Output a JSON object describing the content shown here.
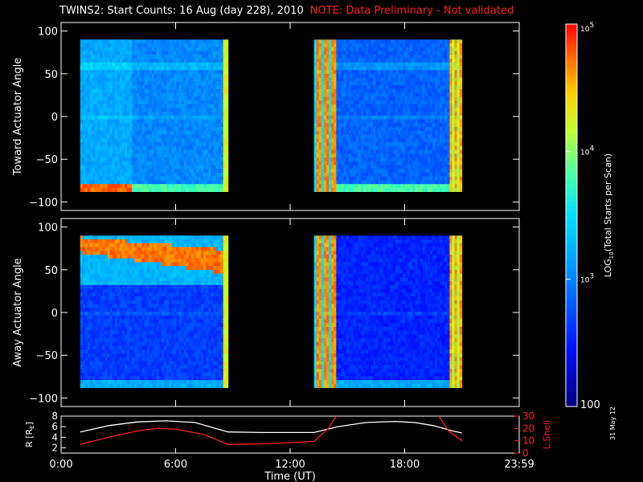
{
  "header": {
    "title": "TWINS2: Start Counts: 16 Aug (day 228), 2010",
    "note": "NOTE: Data Preliminary - Not validated"
  },
  "footer": {
    "date_stamp": "31 May 12"
  },
  "colors": {
    "note": "#ff2020",
    "orbit_r": "#ffffff",
    "orbit_l": "#ff2020"
  },
  "chart_data": [
    {
      "type": "heatmap",
      "title": "",
      "ylabel": "Toward Actuator Angle",
      "ylim": [
        -110,
        110
      ],
      "yticks": [
        100,
        50,
        0,
        -50,
        -100
      ],
      "xlim": [
        0,
        24
      ],
      "data_intervals_hours": [
        [
          1.0,
          8.75
        ],
        [
          13.25,
          21.0
        ]
      ],
      "angle_range": [
        -88,
        90
      ]
    },
    {
      "type": "heatmap",
      "title": "",
      "ylabel": "Away Actuator Angle",
      "ylim": [
        -110,
        110
      ],
      "yticks": [
        100,
        50,
        0,
        -50,
        -100
      ],
      "xlim": [
        0,
        24
      ],
      "data_intervals_hours": [
        [
          1.0,
          8.75
        ],
        [
          13.25,
          21.0
        ]
      ],
      "angle_range": [
        -88,
        90
      ]
    },
    {
      "type": "line",
      "ylabel_left": "R [R",
      "ylabel_left_sub": "E",
      "ylabel_left_close": "]",
      "ylabel_right": "L Shell",
      "ylim_left": [
        1,
        8
      ],
      "yticks_left": [
        8,
        6,
        4,
        2
      ],
      "ylim_right": [
        0,
        30
      ],
      "yticks_right": [
        30,
        20,
        10,
        0
      ],
      "xlabel": "Time (UT)",
      "xticks": [
        "0:00",
        "6:00",
        "12:00",
        "18:00",
        "23:59"
      ],
      "xtick_hours": [
        0,
        6,
        12,
        18,
        24
      ],
      "series": [
        {
          "axis": "left",
          "color": "#ffffff",
          "x": [
            1.0,
            2.5,
            4.0,
            5.5,
            7.0,
            8.75,
            10.5,
            12.0,
            13.25,
            14.5,
            16.0,
            17.5,
            18.5,
            19.5,
            20.5,
            21.0
          ],
          "y": [
            5.0,
            6.2,
            6.9,
            7.1,
            6.8,
            5.0,
            4.9,
            4.9,
            4.9,
            6.0,
            6.8,
            7.0,
            6.8,
            6.2,
            5.2,
            4.8
          ]
        },
        {
          "axis": "right",
          "color": "#ff2020",
          "x": [
            1.0,
            2.5,
            4.0,
            5.0,
            6.0,
            7.5,
            8.75,
            10.5,
            12.0,
            13.25,
            14.0,
            14.5,
            19.7,
            20.3,
            21.0
          ],
          "y": [
            7.0,
            13.0,
            18.0,
            20.0,
            19.5,
            15.0,
            7.0,
            7.5,
            8.5,
            9.5,
            20.0,
            32.0,
            32.0,
            18.0,
            10.0
          ]
        }
      ]
    }
  ],
  "colorbar": {
    "label_pre": "LOG",
    "label_sub": "10",
    "label_post": "(Total Starts per Scan)",
    "ticks": [
      {
        "base": "10",
        "exp": "5",
        "log": 5
      },
      {
        "base": "10",
        "exp": "4",
        "log": 4
      },
      {
        "base": "10",
        "exp": "3",
        "log": 3
      },
      {
        "base": "100",
        "exp": "",
        "log": 2
      }
    ],
    "range_log": [
      2,
      5
    ]
  }
}
